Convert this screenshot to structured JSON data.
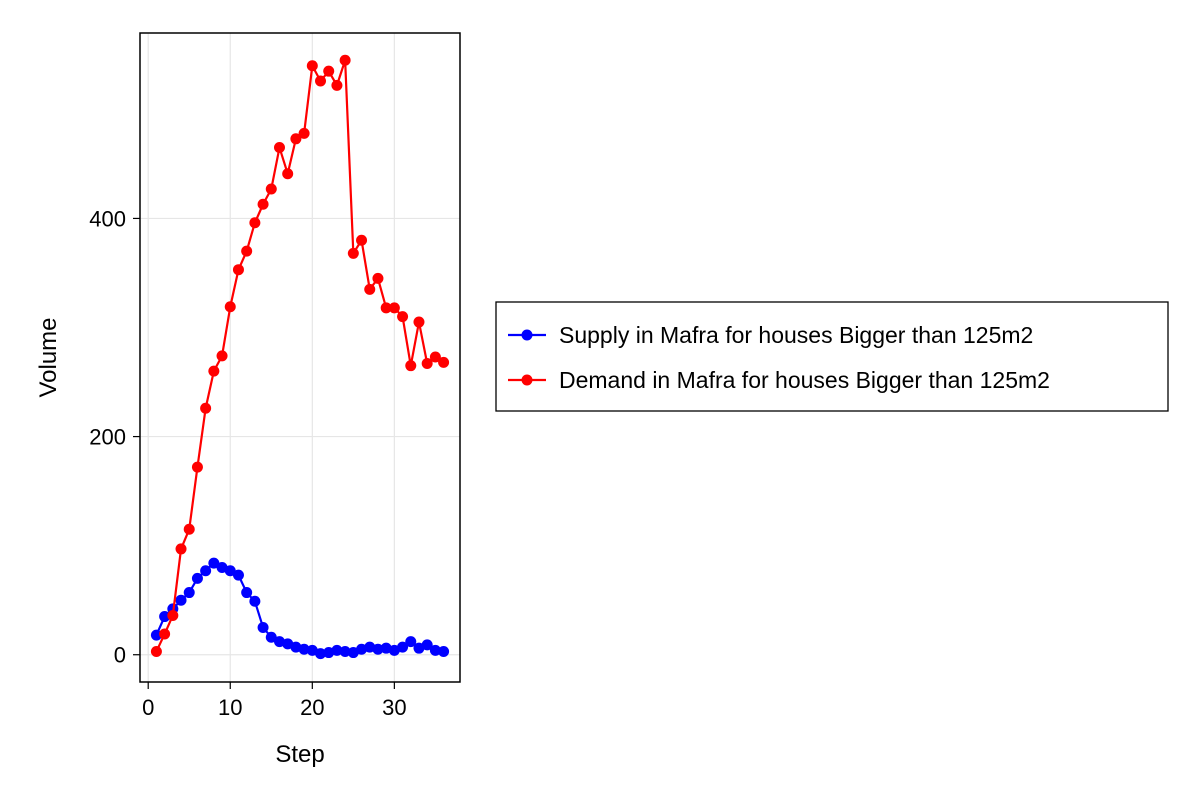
{
  "chart_data": {
    "type": "line",
    "title": "",
    "xlabel": "Step",
    "ylabel": "Volume",
    "xlim": [
      -1,
      38
    ],
    "ylim": [
      -25,
      570
    ],
    "xticks": [
      0,
      10,
      20,
      30
    ],
    "yticks": [
      0,
      200,
      400
    ],
    "grid": true,
    "legend_position": "right",
    "x": [
      1,
      2,
      3,
      4,
      5,
      6,
      7,
      8,
      9,
      10,
      11,
      12,
      13,
      14,
      15,
      16,
      17,
      18,
      19,
      20,
      21,
      22,
      23,
      24,
      25,
      26,
      27,
      28,
      29,
      30,
      31,
      32,
      33,
      34,
      35,
      36
    ],
    "series": [
      {
        "name": "Supply in Mafra for houses Bigger than 125m2",
        "color": "#0000ff",
        "values": [
          18,
          35,
          42,
          50,
          57,
          70,
          77,
          84,
          80,
          77,
          73,
          57,
          49,
          25,
          16,
          12,
          10,
          7,
          5,
          4,
          1,
          2,
          4,
          3,
          2,
          5,
          7,
          5,
          6,
          4,
          7,
          12,
          6,
          9,
          4,
          3
        ]
      },
      {
        "name": "Demand in Mafra for houses Bigger than 125m2",
        "color": "#ff0000",
        "values": [
          3,
          19,
          36,
          97,
          115,
          172,
          226,
          260,
          274,
          319,
          353,
          370,
          396,
          413,
          427,
          465,
          441,
          473,
          478,
          540,
          526,
          535,
          522,
          545,
          368,
          380,
          335,
          345,
          318,
          318,
          310,
          265,
          305,
          267,
          273,
          268
        ]
      }
    ]
  }
}
